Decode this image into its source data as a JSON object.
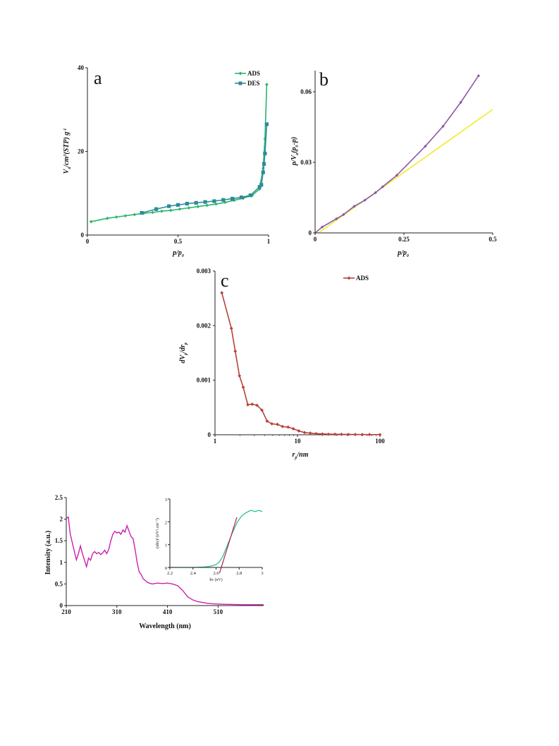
{
  "colors": {
    "ads_green": "#2bb56b",
    "des_teal": "#2e8a99",
    "purple": "#8a5aa8",
    "yellow": "#f2ea2a",
    "red": "#b5413a",
    "magenta": "#cc1fae",
    "teal_inset": "#21b999",
    "axis": "#222222"
  },
  "chart_data": [
    {
      "id": "a",
      "panel_label": "a",
      "type": "line",
      "xlabel": "p/p₀",
      "ylabel": "Va/cm³(STP) g⁻¹",
      "xlim": [
        0,
        1
      ],
      "ylim": [
        0,
        40
      ],
      "xticks": [
        0,
        0.5,
        1
      ],
      "xtick_labels": [
        "0",
        "0.5",
        "1"
      ],
      "yticks": [
        0,
        20,
        40
      ],
      "ytick_labels": [
        "0",
        "20",
        "40"
      ],
      "legend_position": "top-right",
      "series": [
        {
          "name": "ADS",
          "color": "#2bb56b",
          "marker": "diamond",
          "x": [
            0.02,
            0.11,
            0.16,
            0.21,
            0.26,
            0.31,
            0.36,
            0.41,
            0.46,
            0.51,
            0.56,
            0.61,
            0.66,
            0.71,
            0.76,
            0.81,
            0.86,
            0.91,
            0.95,
            0.97,
            0.98,
            0.99
          ],
          "y": [
            3.2,
            4.0,
            4.3,
            4.6,
            4.9,
            5.2,
            5.4,
            5.7,
            5.9,
            6.2,
            6.5,
            6.8,
            7.1,
            7.4,
            7.8,
            8.3,
            8.8,
            9.5,
            11.0,
            16.0,
            23.0,
            36.0
          ]
        },
        {
          "name": "DES",
          "color": "#2e8a99",
          "marker": "square",
          "x": [
            0.99,
            0.98,
            0.975,
            0.97,
            0.96,
            0.95,
            0.9,
            0.85,
            0.8,
            0.75,
            0.7,
            0.65,
            0.6,
            0.55,
            0.5,
            0.45,
            0.38,
            0.3
          ],
          "y": [
            26.5,
            19.5,
            17.0,
            15.0,
            12.0,
            11.5,
            9.5,
            9.0,
            8.7,
            8.4,
            8.1,
            7.9,
            7.7,
            7.5,
            7.2,
            6.9,
            6.2,
            5.3
          ]
        }
      ]
    },
    {
      "id": "b",
      "panel_label": "b",
      "type": "line",
      "xlabel": "p/p₀",
      "ylabel": "p/Va(p₀-p)",
      "xlim": [
        0,
        0.5
      ],
      "ylim": [
        0,
        0.069
      ],
      "xticks": [
        0,
        0.25,
        0.5
      ],
      "xtick_labels": [
        "0",
        "0.25",
        "0.5"
      ],
      "yticks": [
        0,
        0.03,
        0.06
      ],
      "ytick_labels": [
        "0",
        "0.03",
        "0.06"
      ],
      "series": [
        {
          "name": "",
          "color": "#8a5aa8",
          "marker": "diamond",
          "x": [
            0.0,
            0.02,
            0.06,
            0.08,
            0.11,
            0.14,
            0.17,
            0.19,
            0.23,
            0.31,
            0.36,
            0.41,
            0.46
          ],
          "y": [
            0.0,
            0.0025,
            0.006,
            0.0078,
            0.0113,
            0.0139,
            0.0171,
            0.0196,
            0.0245,
            0.0368,
            0.0453,
            0.0555,
            0.0668
          ]
        },
        {
          "name": "",
          "color": "#f2ea2a",
          "marker": "none",
          "x": [
            0.0,
            0.5
          ],
          "y": [
            -0.001,
            0.0525
          ]
        }
      ]
    },
    {
      "id": "c",
      "panel_label": "c",
      "type": "line",
      "xlabel": "rp/nm",
      "ylabel": "dVp/drp",
      "xscale": "log",
      "xlim": [
        1,
        100
      ],
      "ylim": [
        0,
        0.003
      ],
      "xticks": [
        1,
        10,
        100
      ],
      "xtick_labels": [
        "1",
        "10",
        "100"
      ],
      "yticks": [
        0,
        0.001,
        0.002,
        0.003
      ],
      "ytick_labels": [
        "0",
        "0.001",
        "0.002",
        "0.003"
      ],
      "legend_position": "top-right",
      "series": [
        {
          "name": "ADS",
          "color": "#b5413a",
          "marker": "diamond",
          "x": [
            1.21,
            1.58,
            1.76,
            1.98,
            2.2,
            2.5,
            2.82,
            3.23,
            3.71,
            4.28,
            4.9,
            5.72,
            6.6,
            7.7,
            8.9,
            10.4,
            12.2,
            14.3,
            16.9,
            20.0,
            23.8,
            28.5,
            34.2,
            41.4,
            50.2,
            61.1,
            74.6,
            100.0
          ],
          "y": [
            0.0026,
            0.00195,
            0.00153,
            0.00108,
            0.00087,
            0.00055,
            0.00056,
            0.00054,
            0.00045,
            0.00025,
            0.0002,
            0.00019,
            0.00015,
            0.00014,
            0.00011,
            7e-05,
            4e-05,
            3e-05,
            2e-05,
            1.5e-05,
            1e-05,
            1e-05,
            8e-06,
            6e-06,
            5e-06,
            4e-06,
            3e-06,
            2e-06
          ]
        }
      ]
    },
    {
      "id": "d",
      "panel_label": "",
      "type": "line",
      "xlabel": "Wavelength (nm)",
      "ylabel": "Intensity (a.u.)",
      "xlim": [
        210,
        600
      ],
      "ylim": [
        0,
        2.5
      ],
      "xticks": [
        210,
        310,
        410,
        510
      ],
      "xtick_labels": [
        "210",
        "310",
        "410",
        "510"
      ],
      "yticks": [
        0,
        0.5,
        1,
        1.5,
        2,
        2.5
      ],
      "ytick_labels": [
        "0",
        "0.5",
        "1",
        "1.5",
        "2",
        "2.5"
      ],
      "series": [
        {
          "name": "",
          "color": "#cc1fae",
          "marker": "none",
          "x": [
            210,
            214,
            218,
            222,
            226,
            230,
            234,
            238,
            242,
            246,
            250,
            254,
            258,
            262,
            266,
            270,
            274,
            278,
            282,
            286,
            290,
            294,
            298,
            302,
            306,
            310,
            314,
            318,
            322,
            326,
            330,
            334,
            338,
            342,
            346,
            350,
            354,
            358,
            362,
            366,
            370,
            374,
            380,
            390,
            400,
            410,
            420,
            430,
            440,
            450,
            460,
            470,
            480,
            490,
            500,
            520,
            540,
            560,
            580,
            600
          ],
          "y": [
            2.02,
            2.05,
            1.65,
            1.45,
            1.25,
            1.06,
            1.2,
            1.38,
            1.2,
            1.05,
            0.9,
            1.1,
            1.05,
            1.2,
            1.25,
            1.2,
            1.23,
            1.18,
            1.22,
            1.28,
            1.2,
            1.3,
            1.5,
            1.65,
            1.72,
            1.68,
            1.7,
            1.65,
            1.75,
            1.7,
            1.85,
            1.72,
            1.6,
            1.55,
            1.3,
            1.0,
            0.78,
            0.72,
            0.62,
            0.58,
            0.54,
            0.52,
            0.5,
            0.52,
            0.51,
            0.52,
            0.5,
            0.46,
            0.35,
            0.2,
            0.13,
            0.09,
            0.07,
            0.05,
            0.04,
            0.03,
            0.025,
            0.02,
            0.02,
            0.02
          ]
        }
      ],
      "inset": {
        "type": "line",
        "xlabel": "hν (eV)",
        "ylabel": "(αhν)² (eV².cm⁻²)",
        "xlim": [
          2.2,
          3.0
        ],
        "ylim": [
          0,
          3
        ],
        "xticks": [
          2.2,
          2.4,
          2.6,
          2.8,
          3
        ],
        "xtick_labels": [
          "2.2",
          "2.4",
          "2.6",
          "2.8",
          "3"
        ],
        "yticks": [
          0,
          1,
          2,
          3
        ],
        "ytick_labels": [
          "0",
          "1",
          "2",
          "3"
        ],
        "series": [
          {
            "name": "",
            "color": "#21b999",
            "x": [
              2.2,
              2.3,
              2.4,
              2.5,
              2.55,
              2.6,
              2.63,
              2.66,
              2.7,
              2.74,
              2.78,
              2.82,
              2.86,
              2.9,
              2.94,
              2.97,
              3.0
            ],
            "y": [
              0.0,
              0.0,
              0.0,
              0.02,
              0.05,
              0.12,
              0.25,
              0.5,
              1.0,
              1.5,
              1.95,
              2.25,
              2.4,
              2.5,
              2.45,
              2.5,
              2.45
            ]
          },
          {
            "name": "",
            "color": "#b5214a",
            "x": [
              2.63,
              2.78
            ],
            "y": [
              -0.25,
              2.2
            ]
          }
        ]
      }
    }
  ]
}
